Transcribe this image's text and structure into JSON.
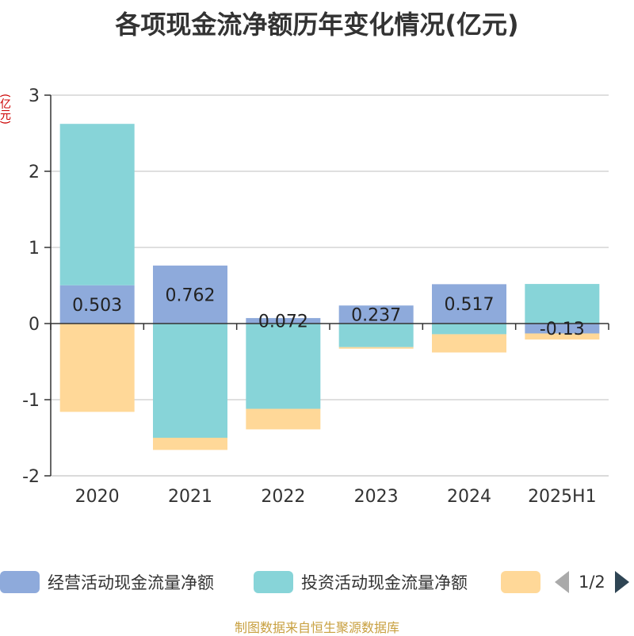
{
  "title": "各项现金流净额历年变化情况(亿元)",
  "unit_label": "(亿元)",
  "footer": "制图数据来自恒生聚源数据库",
  "pager": {
    "text": "1/2"
  },
  "chart_data": {
    "type": "bar",
    "stacked": true,
    "categories": [
      "2020",
      "2021",
      "2022",
      "2023",
      "2024",
      "2025H1"
    ],
    "ylim": [
      -2,
      3
    ],
    "yticks": [
      -2,
      -1,
      0,
      1,
      2,
      3
    ],
    "grid": true,
    "legend_position": "bottom",
    "series": [
      {
        "name": "经营活动现金流量净额",
        "color": "#8eaadb",
        "values": [
          0.503,
          0.762,
          0.072,
          0.237,
          0.517,
          -0.13
        ],
        "labels": [
          "0.503",
          "0.762",
          "0.072",
          "0.237",
          "0.517",
          "-0.13"
        ]
      },
      {
        "name": "投资活动现金流量净额",
        "color": "#87d4d8",
        "values": [
          2.12,
          -1.5,
          -1.12,
          -0.31,
          -0.14,
          0.52
        ]
      },
      {
        "name": "",
        "color": "#ffd898",
        "values": [
          -1.16,
          -0.16,
          -0.27,
          -0.02,
          -0.24,
          -0.08
        ]
      }
    ]
  }
}
